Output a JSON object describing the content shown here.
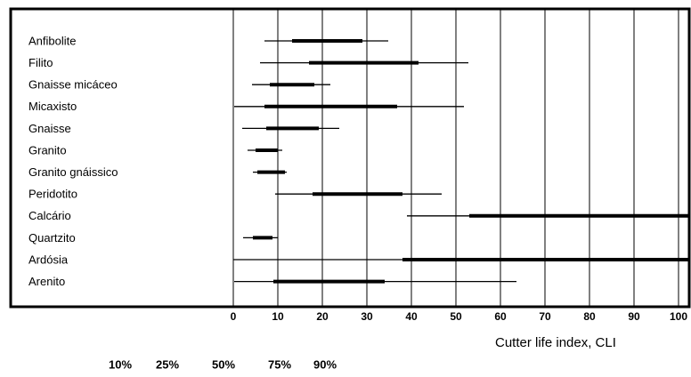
{
  "chart_data": {
    "type": "range",
    "categories": [
      "Anfibolite",
      "Filito",
      "Gnaisse micáceo",
      "Micaxisto",
      "Gnaisse",
      "Granito",
      "Granito gnáissico",
      "Peridotito",
      "Calcário",
      "Quartzito",
      "Ardósia",
      "Arenito"
    ],
    "p10": [
      7,
      6,
      4.2,
      0.2,
      2,
      3.2,
      4.4,
      9.4,
      39,
      2.2,
      0,
      0.2
    ],
    "p25": [
      13.2,
      17,
      8.2,
      7,
      7.4,
      5,
      5.4,
      17.8,
      53,
      4.4,
      38,
      9
    ],
    "p75": [
      29,
      41.6,
      18.2,
      36.8,
      19.2,
      10,
      11.6,
      38,
      104,
      8.8,
      104,
      34
    ],
    "p90": [
      34.8,
      52.8,
      21.8,
      51.8,
      23.8,
      11,
      12,
      46.8,
      104,
      10,
      104,
      63.6
    ],
    "color": "#000000",
    "xlim": [
      0,
      100
    ],
    "xticks": [
      0,
      10,
      20,
      30,
      40,
      50,
      60,
      70,
      80,
      90,
      100
    ],
    "grid": true,
    "xlabel": "Cutter life index, CLI",
    "percentile_labels": [
      "10%",
      "25%",
      "50%",
      "75%",
      "90%"
    ]
  }
}
